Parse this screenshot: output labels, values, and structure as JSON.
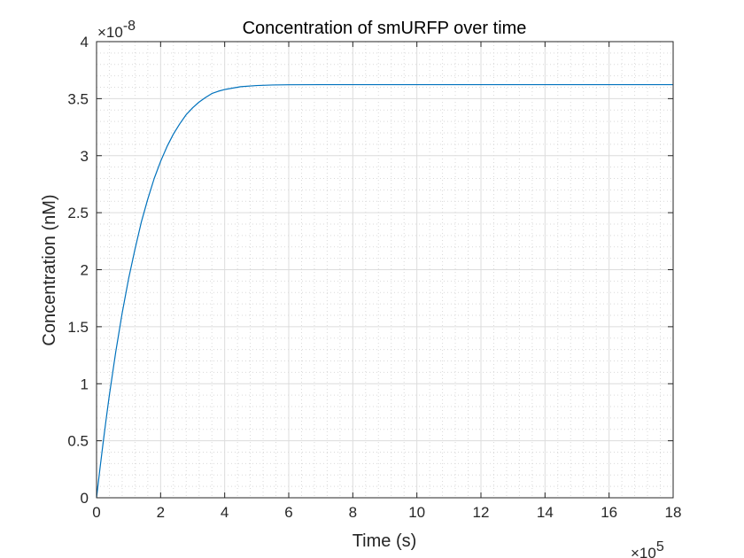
{
  "chart_data": {
    "type": "line",
    "title": "Concentration of smURFP over time",
    "xlabel": "Time (s)",
    "ylabel": "Concentration (nM)",
    "x_multiplier": {
      "base": "×10",
      "exponent": "5"
    },
    "y_multiplier": {
      "base": "×10",
      "exponent": "-8"
    },
    "xlim": [
      0,
      1800000
    ],
    "ylim": [
      0,
      4e-08
    ],
    "x_ticks": [
      0,
      200000,
      400000,
      600000,
      800000,
      1000000,
      1200000,
      1400000,
      1600000,
      1800000
    ],
    "x_tick_labels": [
      "0",
      "2",
      "4",
      "6",
      "8",
      "10",
      "12",
      "14",
      "16",
      "18"
    ],
    "y_ticks": [
      0,
      5e-09,
      1e-08,
      1.5e-08,
      2e-08,
      2.5e-08,
      3e-08,
      3.5e-08,
      4e-08
    ],
    "y_tick_labels": [
      "0",
      "0.5",
      "1",
      "1.5",
      "2",
      "2.5",
      "3",
      "3.5",
      "4"
    ],
    "grid": true,
    "minor_grid": true,
    "legend": "none",
    "series": [
      {
        "color": "#0072BD",
        "x": [
          0,
          10000,
          20000,
          30000,
          40000,
          50000,
          60000,
          70000,
          80000,
          90000,
          100000,
          120000,
          140000,
          160000,
          180000,
          200000,
          220000,
          240000,
          260000,
          280000,
          300000,
          320000,
          340000,
          360000,
          380000,
          400000,
          450000,
          500000,
          550000,
          600000,
          700000,
          800000,
          900000,
          1000000,
          1200000,
          1400000,
          1600000,
          1800000
        ],
        "y": [
          0,
          2.4e-09,
          4.7e-09,
          6.9e-09,
          9e-09,
          1.09e-08,
          1.28e-08,
          1.45e-08,
          1.62e-08,
          1.77e-08,
          1.92e-08,
          2.18e-08,
          2.42e-08,
          2.62e-08,
          2.8e-08,
          2.95e-08,
          3.08e-08,
          3.19e-08,
          3.28e-08,
          3.36e-08,
          3.42e-08,
          3.47e-08,
          3.51e-08,
          3.545e-08,
          3.565e-08,
          3.58e-08,
          3.605e-08,
          3.615e-08,
          3.62e-08,
          3.622e-08,
          3.623e-08,
          3.623e-08,
          3.623e-08,
          3.623e-08,
          3.623e-08,
          3.623e-08,
          3.623e-08,
          3.623e-08
        ]
      }
    ]
  }
}
